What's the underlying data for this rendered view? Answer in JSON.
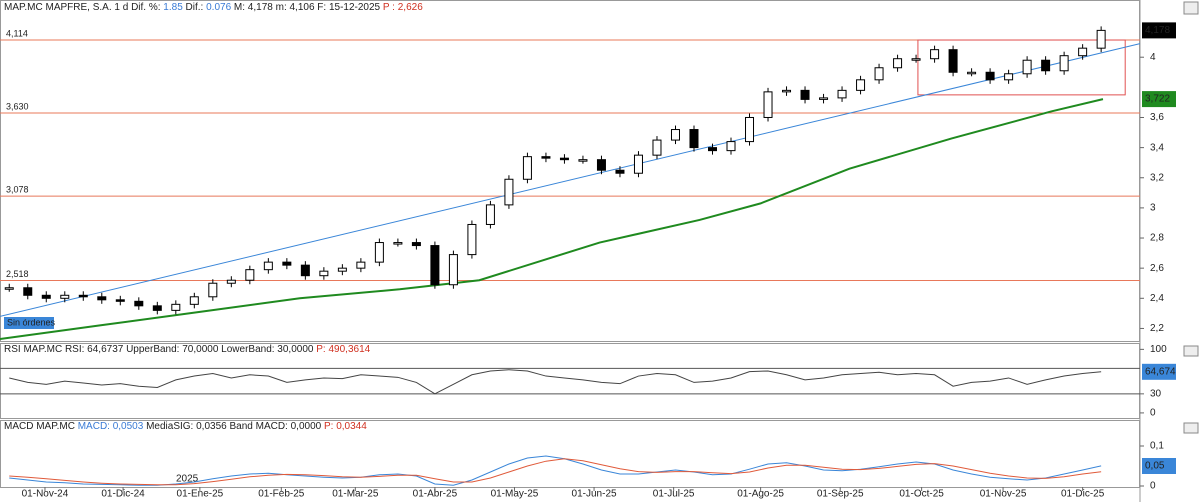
{
  "header": {
    "items": [
      {
        "text": "MAP.MC MAPFRE, S.A.   1 d Dif. %: "
      },
      {
        "text": "1.85",
        "color": "#3a7bd5"
      },
      {
        "text": " Dif.: "
      },
      {
        "text": "0.076",
        "color": "#3a7bd5"
      },
      {
        "text": " M: 4,178  m: 4,106  F: 15-12-2025  "
      },
      {
        "text": "P : 2,626",
        "color": "#d03020"
      }
    ]
  },
  "chart_data": [
    {
      "type": "candlestick",
      "xlim": [
        0,
        61.6
      ],
      "ylim": [
        2.11,
        4.3
      ],
      "x": [
        0.5,
        1.5,
        2.5,
        3.5,
        4.5,
        5.5,
        6.5,
        7.5,
        8.5,
        9.5,
        10.5,
        11.5,
        12.5,
        13.5,
        14.5,
        15.5,
        16.5,
        17.5,
        18.5,
        19.5,
        20.5,
        21.5,
        22.5,
        23.5,
        24.5,
        25.5,
        26.5,
        27.5,
        28.5,
        29.5,
        30.5,
        31.5,
        32.5,
        33.5,
        34.5,
        35.5,
        36.5,
        37.5,
        38.5,
        39.5,
        40.5,
        41.5,
        42.5,
        43.5,
        44.5,
        45.5,
        46.5,
        47.5,
        48.5,
        49.5,
        50.5,
        51.5,
        52.5,
        53.5,
        54.5,
        55.5,
        56.5,
        57.5,
        58.5,
        59.5
      ],
      "series": [
        {
          "name": "MAP.MC",
          "values": [
            2.47,
            2.42,
            2.4,
            2.42,
            2.41,
            2.39,
            2.38,
            2.35,
            2.32,
            2.36,
            2.41,
            2.5,
            2.52,
            2.59,
            2.64,
            2.62,
            2.55,
            2.58,
            2.6,
            2.64,
            2.77,
            2.77,
            2.75,
            2.49,
            2.69,
            2.89,
            3.02,
            3.19,
            3.34,
            3.33,
            3.32,
            3.32,
            3.25,
            3.23,
            3.35,
            3.45,
            3.52,
            3.4,
            3.38,
            3.44,
            3.6,
            3.77,
            3.78,
            3.72,
            3.73,
            3.78,
            3.85,
            3.93,
            3.99,
            3.99,
            4.05,
            3.9,
            3.9,
            3.85,
            3.89,
            3.98,
            3.91,
            4.01,
            4.06,
            4.178
          ]
        }
      ],
      "moving_average": {
        "color": "#1f8a1f",
        "x": [
          0,
          5.4,
          10.8,
          16.2,
          21.6,
          25.9,
          32.4,
          37.8,
          41.1,
          45.9,
          51.4,
          56.8,
          59.6
        ],
        "values": [
          2.13,
          2.22,
          2.31,
          2.4,
          2.46,
          2.52,
          2.77,
          2.92,
          3.03,
          3.26,
          3.46,
          3.64,
          3.722
        ]
      },
      "trendline": {
        "color": "#3a86d8",
        "x": [
          0,
          61.6
        ],
        "values": [
          2.28,
          4.09
        ]
      },
      "rectangle": {
        "color": "#e05050",
        "x": [
          49.6,
          60.8
        ],
        "y": [
          4.114,
          3.75
        ]
      },
      "levels": [
        {
          "value": 4.114,
          "label": "4,114"
        },
        {
          "value": 3.63,
          "label": "3,630"
        },
        {
          "value": 3.078,
          "label": "3,078"
        },
        {
          "value": 2.518,
          "label": "2,518"
        }
      ],
      "last_label": {
        "value": 4.178,
        "label": "4,178"
      },
      "ma_label": {
        "value": 3.722,
        "label": "3,722"
      },
      "yticks": [
        4,
        {
          "value": 3.6,
          "label": "3,6"
        },
        {
          "value": 3.4,
          "label": "3,4"
        },
        {
          "value": 3.2,
          "label": "3,2"
        },
        3,
        {
          "value": 2.8,
          "label": "2,8"
        },
        {
          "value": 2.6,
          "label": "2,6"
        },
        {
          "value": 2.4,
          "label": "2,4"
        },
        {
          "value": 2.2,
          "label": "2,2"
        }
      ],
      "xticks": [
        {
          "value": 2.43,
          "label": "01-Nov-24"
        },
        {
          "value": 6.65,
          "label": "01-Dic-24"
        },
        {
          "value": 10.8,
          "label": "01-Ene-25"
        },
        {
          "value": 15.2,
          "label": "01-Feb-25"
        },
        {
          "value": 19.2,
          "label": "01-Mar-25"
        },
        {
          "value": 23.5,
          "label": "01-Abr-25"
        },
        {
          "value": 27.8,
          "label": "01-May-25"
        },
        {
          "value": 32.1,
          "label": "01-Jun-25"
        },
        {
          "value": 36.4,
          "label": "01-Jul-25"
        },
        {
          "value": 41.1,
          "label": "01-Ago-25"
        },
        {
          "value": 45.4,
          "label": "01-Sep-25"
        },
        {
          "value": 49.8,
          "label": "01-Oct-25"
        },
        {
          "value": 54.2,
          "label": "01-Nov-25"
        },
        {
          "value": 58.5,
          "label": "01-Dic-25"
        }
      ],
      "annotations": [
        "Sin órdenes",
        "2025"
      ]
    },
    {
      "type": "line",
      "title_items": [
        {
          "text": "RSI MAP.MC RSI: 64,6737 UpperBand: 70,0000 LowerBand: 30,0000 "
        },
        {
          "text": "P: 490,3614",
          "color": "#d03020"
        }
      ],
      "ylim": [
        -8,
        110
      ],
      "yticks": [
        100,
        30,
        0
      ],
      "bands": [
        70,
        30
      ],
      "series": [
        {
          "name": "RSI",
          "color": "#444444",
          "values": [
            55,
            48,
            45,
            50,
            47,
            44,
            46,
            42,
            40,
            52,
            58,
            62,
            55,
            60,
            58,
            48,
            52,
            55,
            54,
            60,
            58,
            56,
            48,
            30,
            45,
            60,
            66,
            68,
            66,
            58,
            55,
            52,
            48,
            46,
            58,
            62,
            60,
            48,
            50,
            55,
            65,
            66,
            60,
            52,
            55,
            60,
            62,
            64,
            60,
            62,
            60,
            42,
            48,
            50,
            55,
            45,
            52,
            58,
            62,
            64.674
          ]
        }
      ],
      "last_label": {
        "value": 64.674,
        "label": "64,674"
      }
    },
    {
      "type": "line",
      "title_items": [
        {
          "text": "MACD MAP.MC "
        },
        {
          "text": "MACD: 0,0503",
          "color": "#3a7bd5"
        },
        {
          "text": " MediaSIG: 0,0356 Band MACD: 0,0000 "
        },
        {
          "text": "P: 0,0344",
          "color": "#d03020"
        }
      ],
      "ylim": [
        -0.0025,
        0.165
      ],
      "yticks": [
        {
          "value": 0.1,
          "label": "0,1"
        },
        0
      ],
      "series": [
        {
          "name": "MACD",
          "color": "#3a86d8",
          "values": [
            0.02,
            0.015,
            0.01,
            0.008,
            0.005,
            0.004,
            0.003,
            0.002,
            0.002,
            0.005,
            0.01,
            0.018,
            0.025,
            0.03,
            0.032,
            0.028,
            0.025,
            0.022,
            0.02,
            0.022,
            0.028,
            0.03,
            0.025,
            0.005,
            0.002,
            0.015,
            0.035,
            0.055,
            0.07,
            0.075,
            0.068,
            0.055,
            0.04,
            0.03,
            0.03,
            0.035,
            0.04,
            0.035,
            0.028,
            0.03,
            0.042,
            0.055,
            0.058,
            0.05,
            0.04,
            0.038,
            0.042,
            0.048,
            0.055,
            0.06,
            0.055,
            0.04,
            0.03,
            0.022,
            0.018,
            0.015,
            0.02,
            0.03,
            0.04,
            0.0503
          ]
        },
        {
          "name": "MediaSIG",
          "color": "#e05a3a",
          "values": [
            0.025,
            0.022,
            0.018,
            0.014,
            0.01,
            0.007,
            0.005,
            0.004,
            0.003,
            0.003,
            0.006,
            0.011,
            0.017,
            0.023,
            0.027,
            0.029,
            0.028,
            0.026,
            0.023,
            0.022,
            0.024,
            0.027,
            0.027,
            0.018,
            0.01,
            0.01,
            0.02,
            0.035,
            0.05,
            0.062,
            0.068,
            0.063,
            0.053,
            0.043,
            0.036,
            0.034,
            0.036,
            0.036,
            0.033,
            0.031,
            0.035,
            0.045,
            0.052,
            0.052,
            0.047,
            0.042,
            0.041,
            0.044,
            0.049,
            0.054,
            0.056,
            0.05,
            0.041,
            0.032,
            0.025,
            0.02,
            0.019,
            0.023,
            0.03,
            0.0356
          ]
        }
      ],
      "last_label": {
        "value": 0.05,
        "label": "0,05"
      }
    }
  ]
}
